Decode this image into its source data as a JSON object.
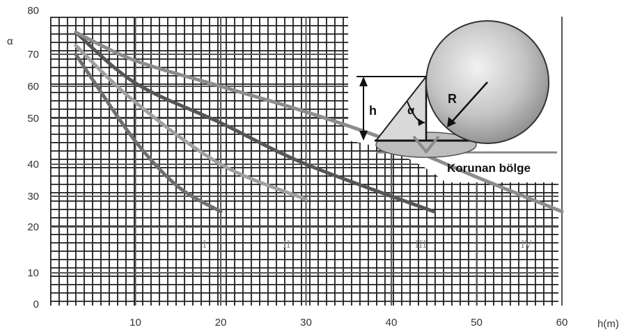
{
  "chart_data": {
    "type": "line",
    "title": "",
    "xlabel": "h(m)",
    "ylabel": "α",
    "xlim": [
      0,
      60
    ],
    "y_ticks": [
      0,
      10,
      20,
      30,
      40,
      50,
      60,
      70,
      80
    ],
    "x_ticks": [
      10,
      20,
      30,
      40,
      50,
      60
    ],
    "grid": true,
    "series": [
      {
        "name": "I",
        "x": [
          3,
          5,
          10,
          15,
          20
        ],
        "y": [
          70,
          62,
          45,
          33,
          25
        ],
        "color": "#6e6e6e"
      },
      {
        "name": "II",
        "x": [
          3,
          10,
          20,
          30
        ],
        "y": [
          72,
          55,
          40,
          29
        ],
        "color": "#a0a0a0"
      },
      {
        "name": "III",
        "x": [
          3,
          10,
          20,
          30,
          45
        ],
        "y": [
          75,
          61,
          49,
          40,
          25
        ],
        "color": "#555555"
      },
      {
        "name": "IV",
        "x": [
          3,
          10,
          20,
          30,
          40,
          50,
          60
        ],
        "y": [
          75,
          68,
          60,
          52,
          45,
          36,
          25
        ],
        "color": "#8c8c8c"
      }
    ],
    "inset": {
      "h_label": "h",
      "alpha_label": "α",
      "R_label": "R",
      "zone_label": "Korunan bölge"
    }
  }
}
